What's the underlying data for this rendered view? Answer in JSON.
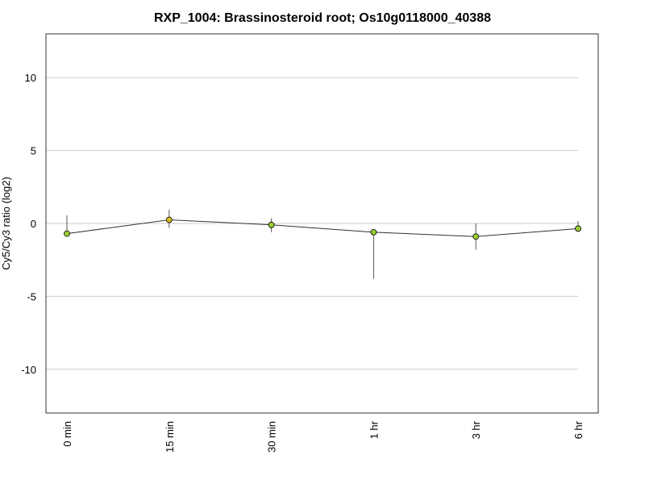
{
  "chart_data": {
    "type": "line",
    "title": "RXP_1004: Brassinosteroid root; Os10g0118000_40388",
    "xlabel": "",
    "ylabel": "Cy5/Cy3 ratio (log2)",
    "categories": [
      "0 min",
      "15 min",
      "30 min",
      "1 hr",
      "3 hr",
      "6 hr"
    ],
    "y_ticks": [
      10,
      5,
      0,
      -5,
      -10
    ],
    "y_tick_labels": [
      "10",
      "5",
      "0",
      "-5",
      "-10"
    ],
    "ylim": [
      -13,
      13
    ],
    "grid": true,
    "series": [
      {
        "values": [
          -0.7,
          0.25,
          -0.1,
          -0.6,
          -0.9,
          -0.35
        ],
        "error_high": [
          0.55,
          0.95,
          0.35,
          -0.55,
          0.0,
          0.15
        ],
        "error_low": [
          -0.75,
          -0.3,
          -0.6,
          -3.8,
          -1.8,
          -0.45
        ],
        "point_colors": [
          "#9acd32",
          "#d4c020",
          "#9acd32",
          "#9acd32",
          "#9acd32",
          "#9acd32"
        ]
      }
    ],
    "colors": {
      "line": "#333333",
      "errorbar": "#555555",
      "grid": "#cccccc",
      "frame": "#333333"
    }
  }
}
